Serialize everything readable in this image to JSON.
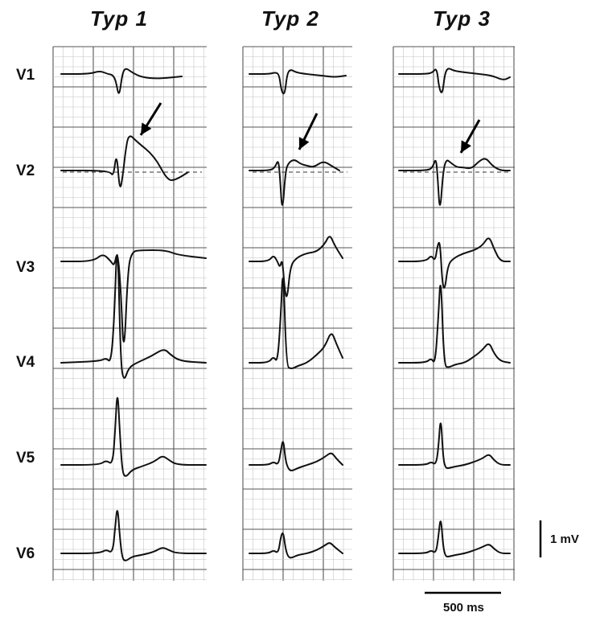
{
  "columns": [
    {
      "title": "Typ 1"
    },
    {
      "title": "Typ 2"
    },
    {
      "title": "Typ 3"
    }
  ],
  "leads": [
    "V1",
    "V2",
    "V3",
    "V4",
    "V5",
    "V6"
  ],
  "scale": {
    "voltage_label": "1 mV",
    "time_label": "500 ms"
  }
}
